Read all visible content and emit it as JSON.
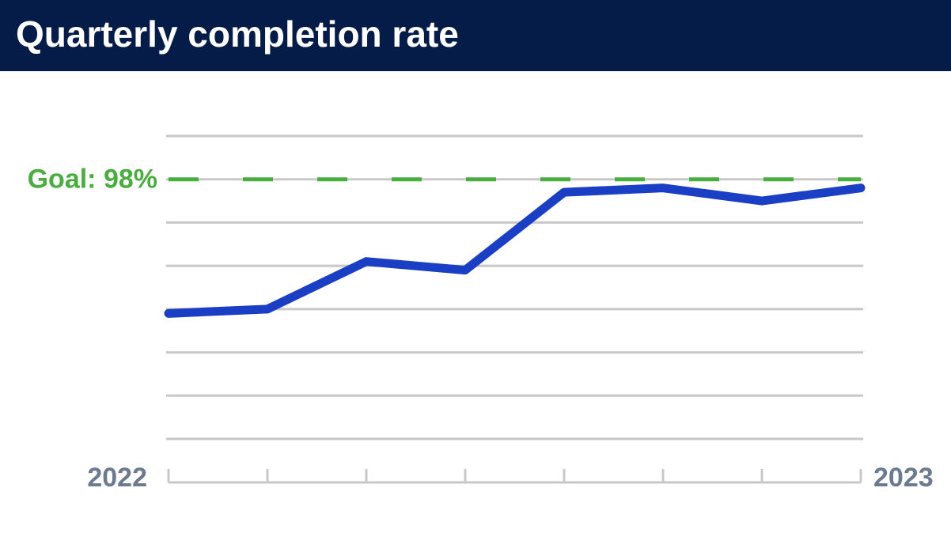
{
  "chart_data": {
    "type": "line",
    "title": "Quarterly completion rate",
    "categories": [
      "2022",
      null,
      null,
      null,
      null,
      null,
      null,
      "2023"
    ],
    "series": [
      {
        "color": "#1a3fc4",
        "values": [
          94.9,
          95.0,
          96.1,
          95.9,
          97.7,
          97.8,
          97.5,
          97.8
        ]
      }
    ],
    "ylim": [
      92,
      99
    ],
    "yticks": [
      92,
      93,
      94,
      95,
      96,
      97,
      98,
      99
    ],
    "grid": true,
    "goal": {
      "value": 98,
      "label": "Goal: 98%",
      "color": "#4aad3f"
    }
  }
}
